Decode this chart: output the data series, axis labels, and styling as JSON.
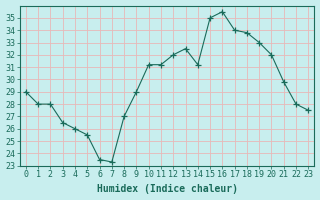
{
  "x": [
    0,
    1,
    2,
    3,
    4,
    5,
    6,
    7,
    8,
    9,
    10,
    11,
    12,
    13,
    14,
    15,
    16,
    17,
    18,
    19,
    20,
    21,
    22,
    23
  ],
  "y": [
    29,
    28,
    28,
    26.5,
    26,
    25.5,
    23.5,
    23.3,
    27,
    29,
    31.2,
    31.2,
    32,
    32.5,
    31.2,
    35,
    35.5,
    34,
    33.8,
    33,
    32,
    29.8,
    28,
    27.5
  ],
  "line_color": "#1a6b5a",
  "marker": "+",
  "marker_size": 4,
  "bg_color": "#c8eeee",
  "grid_color_major": "#e8b8b8",
  "grid_color_minor": "#ffffff",
  "xlabel": "Humidex (Indice chaleur)",
  "ylim": [
    23,
    36
  ],
  "xlim": [
    -0.5,
    23.5
  ],
  "yticks": [
    23,
    24,
    25,
    26,
    27,
    28,
    29,
    30,
    31,
    32,
    33,
    34,
    35
  ],
  "xticks": [
    0,
    1,
    2,
    3,
    4,
    5,
    6,
    7,
    8,
    9,
    10,
    11,
    12,
    13,
    14,
    15,
    16,
    17,
    18,
    19,
    20,
    21,
    22,
    23
  ],
  "tick_color": "#1a6b5a",
  "label_color": "#1a6b5a",
  "xlabel_fontsize": 7,
  "tick_fontsize": 6
}
